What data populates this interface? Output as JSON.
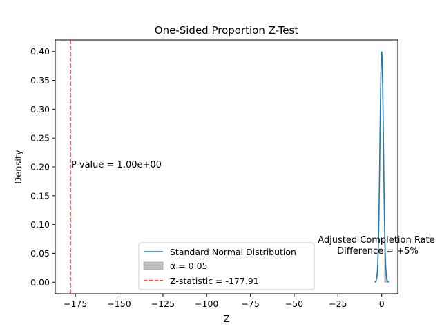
{
  "chart_data": {
    "type": "line",
    "title": "One-Sided Proportion Z-Test",
    "xlabel": "Z",
    "ylabel": "Density",
    "xlim": [
      -186.5,
      9.2
    ],
    "ylim": [
      -0.02,
      0.42
    ],
    "xticks": [
      {
        "value": -175,
        "label": "−175"
      },
      {
        "value": -150,
        "label": "−150"
      },
      {
        "value": -125,
        "label": "−125"
      },
      {
        "value": -100,
        "label": "−100"
      },
      {
        "value": -75,
        "label": "−75"
      },
      {
        "value": -50,
        "label": "−50"
      },
      {
        "value": -25,
        "label": "−25"
      },
      {
        "value": 0,
        "label": "0"
      }
    ],
    "yticks": [
      {
        "value": 0.0,
        "label": "0.00"
      },
      {
        "value": 0.05,
        "label": "0.05"
      },
      {
        "value": 0.1,
        "label": "0.10"
      },
      {
        "value": 0.15,
        "label": "0.15"
      },
      {
        "value": 0.2,
        "label": "0.20"
      },
      {
        "value": 0.25,
        "label": "0.25"
      },
      {
        "value": 0.3,
        "label": "0.30"
      },
      {
        "value": 0.35,
        "label": "0.35"
      },
      {
        "value": 0.4,
        "label": "0.40"
      }
    ],
    "grid": false,
    "legend_position": "bottom-center",
    "series": [
      {
        "name": "Standard Normal Distribution",
        "kind": "line",
        "color": "#1f77b4",
        "x_range": [
          -4,
          4
        ],
        "mean": 0,
        "sd": 1
      },
      {
        "name": "α = 0.05",
        "kind": "shaded-area",
        "color": "#808080",
        "x_range": [
          1.645,
          4
        ]
      },
      {
        "name": "Z-statistic = -177.91",
        "kind": "vertical-dashed-line",
        "color": "#ff0000",
        "x": -177.91
      }
    ],
    "annotations": [
      {
        "text": "P-value = 1.00e+00",
        "x": -177.91,
        "y": 0.2
      },
      {
        "lines": [
          "Adjusted Completion Rate",
          "Difference = +5%"
        ],
        "x": 0,
        "y": 0.05
      }
    ]
  }
}
